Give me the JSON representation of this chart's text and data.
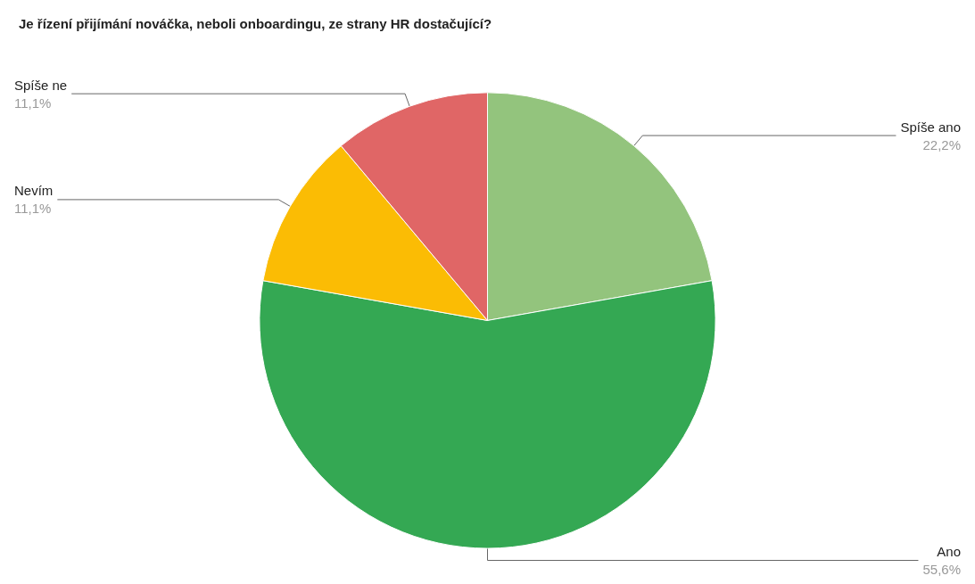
{
  "chart_data": {
    "type": "pie",
    "title": "Je řízení přijímání nováčka, neboli onboardingu, ze strany HR dostačující?",
    "categories": [
      "Spíše ano",
      "Ano",
      "Nevím",
      "Spíše ne"
    ],
    "values": [
      22.2,
      55.6,
      11.1,
      11.1
    ],
    "colors": [
      "#93c47d",
      "#34a853",
      "#fbbc04",
      "#e06666"
    ],
    "value_labels": [
      "22,2%",
      "55,6%",
      "11,1%",
      "11,1%"
    ],
    "legend": false
  }
}
